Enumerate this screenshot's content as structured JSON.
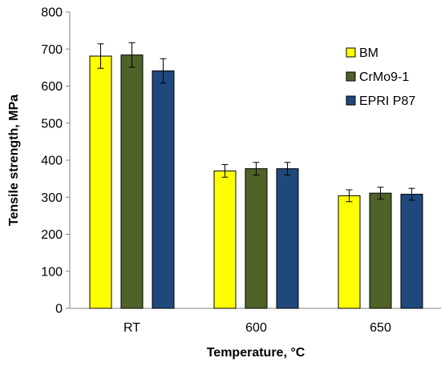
{
  "chart_data": {
    "type": "bar",
    "title": "",
    "xlabel": "Temperature, °C",
    "ylabel": "Tensile strength, MPa",
    "categories": [
      "RT",
      "600",
      "650"
    ],
    "ylim": [
      0,
      800
    ],
    "yticks": [
      0,
      100,
      200,
      300,
      400,
      500,
      600,
      700,
      800
    ],
    "grid": false,
    "legend_position": "top-right",
    "series": [
      {
        "name": "BM",
        "color": "#ffff00",
        "values": [
          681,
          371,
          304
        ],
        "errors": [
          33,
          17,
          16
        ]
      },
      {
        "name": "CrMo9-1",
        "color": "#4f6228",
        "values": [
          684,
          377,
          311
        ],
        "errors": [
          33,
          17,
          16
        ]
      },
      {
        "name": "EPRI P87",
        "color": "#1f497d",
        "values": [
          641,
          377,
          308
        ],
        "errors": [
          33,
          17,
          16
        ]
      }
    ]
  }
}
